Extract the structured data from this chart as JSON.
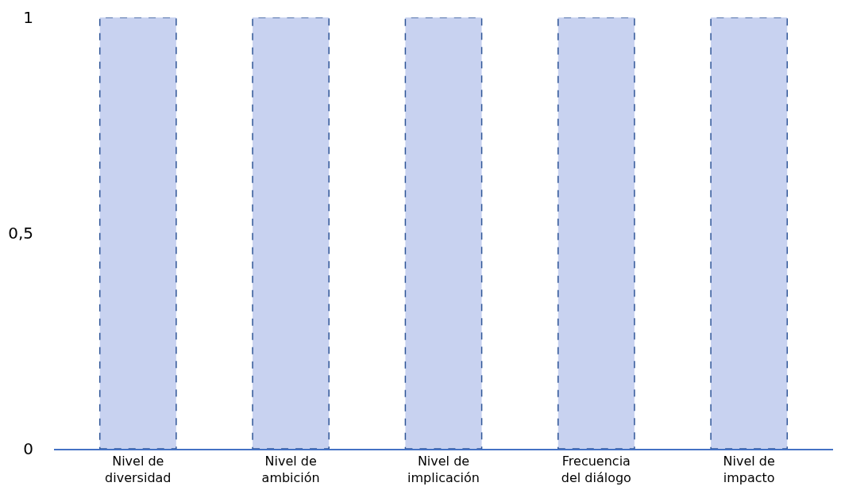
{
  "chart_data": {
    "type": "bar",
    "categories": [
      "Nivel de diversidad",
      "Nivel de ambición",
      "Nivel de implicación",
      "Frecuencia del diálogo",
      "Nivel de impacto"
    ],
    "values": [
      1,
      1,
      1,
      1,
      1
    ],
    "color": "#c8d2f0",
    "line_style": "dashed",
    "ylim": [
      0,
      1
    ],
    "yticks": [
      0,
      {
        "value": 0.5,
        "label": "0,5"
      },
      1
    ]
  }
}
